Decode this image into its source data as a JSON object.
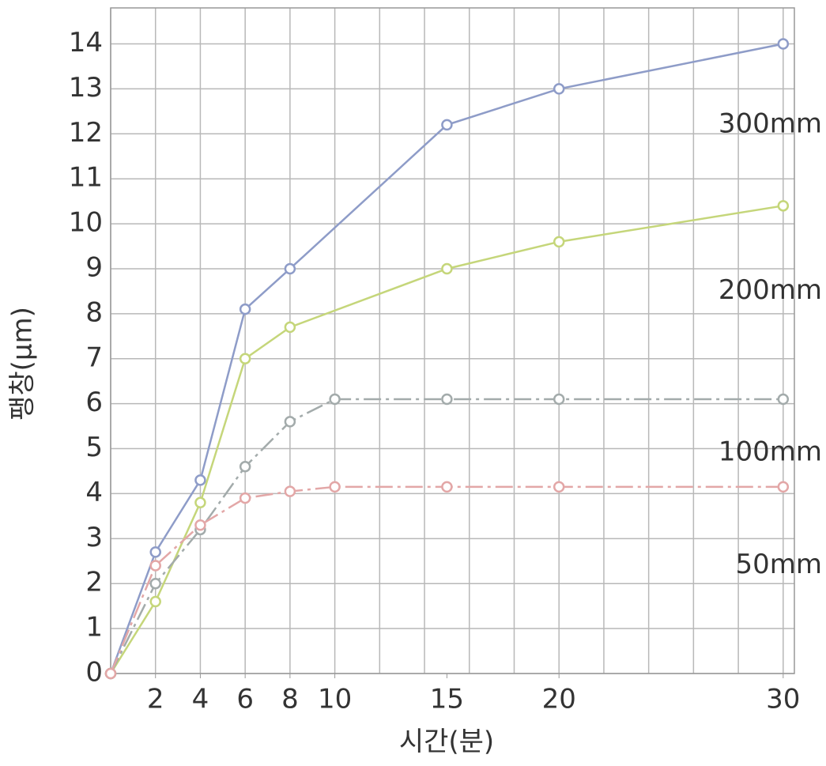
{
  "chart_data": {
    "type": "line",
    "xlabel": "시간(분)",
    "ylabel": "팽창(μm)",
    "xlim": [
      0,
      30.5
    ],
    "ylim": [
      0,
      14.8
    ],
    "xticks": [
      2,
      4,
      6,
      8,
      10,
      15,
      20,
      30
    ],
    "xgrid": [
      0,
      2,
      4,
      6,
      8,
      10,
      12,
      14,
      16,
      18,
      20,
      22,
      24,
      26,
      28,
      30
    ],
    "yticks": [
      0,
      1,
      2,
      3,
      4,
      5,
      6,
      7,
      8,
      9,
      10,
      11,
      12,
      13,
      14
    ],
    "grid": true,
    "series": [
      {
        "name": "300mm",
        "color": "#8e9cc8",
        "dashed": false,
        "label_y": 12.2,
        "x": [
          0,
          2,
          4,
          6,
          8,
          15,
          20,
          30
        ],
        "values": [
          0,
          2.7,
          4.3,
          8.1,
          9,
          12.2,
          13,
          14
        ]
      },
      {
        "name": "200mm",
        "color": "#c5d67a",
        "dashed": false,
        "label_y": 8.5,
        "x": [
          0,
          2,
          4,
          6,
          8,
          15,
          20,
          30
        ],
        "values": [
          0,
          1.6,
          3.8,
          7,
          7.7,
          9,
          9.6,
          10.4
        ]
      },
      {
        "name": "100mm",
        "color": "#a3abab",
        "dashed": true,
        "label_y": 4.9,
        "x": [
          0,
          2,
          4,
          6,
          8,
          10,
          15,
          20,
          30
        ],
        "values": [
          0,
          2,
          3.2,
          4.6,
          5.6,
          6.1,
          6.1,
          6.1,
          6.1
        ]
      },
      {
        "name": "50mm",
        "color": "#e3a7a7",
        "dashed": true,
        "label_y": 2.4,
        "x": [
          0,
          2,
          4,
          6,
          8,
          10,
          15,
          20,
          30
        ],
        "values": [
          0,
          2.4,
          3.3,
          3.9,
          4.05,
          4.15,
          4.15,
          4.15,
          4.15
        ]
      }
    ]
  }
}
